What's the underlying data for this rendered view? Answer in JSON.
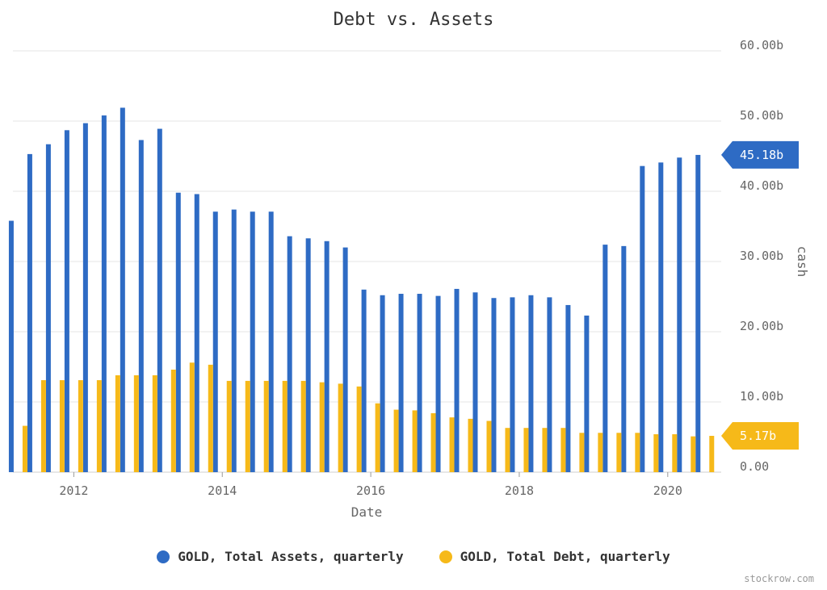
{
  "chart_data": {
    "type": "bar",
    "title": "Debt vs. Assets",
    "xlabel": "Date",
    "ylabel": "cash",
    "ylim": [
      0,
      60
    ],
    "y_ticks": [
      {
        "value": 0,
        "label": "0.00"
      },
      {
        "value": 10,
        "label": "10.00b"
      },
      {
        "value": 20,
        "label": "20.00b"
      },
      {
        "value": 30,
        "label": "30.00b"
      },
      {
        "value": 40,
        "label": "40.00b"
      },
      {
        "value": 50,
        "label": "50.00b"
      },
      {
        "value": 60,
        "label": "60.00b"
      }
    ],
    "x_range": [
      2011.18,
      2020.72
    ],
    "x_ticks": [
      {
        "value": 2012.0,
        "label": "2012"
      },
      {
        "value": 2014.0,
        "label": "2014"
      },
      {
        "value": 2016.0,
        "label": "2016"
      },
      {
        "value": 2018.0,
        "label": "2018"
      },
      {
        "value": 2020.0,
        "label": "2020"
      }
    ],
    "grid": true,
    "legend_position": "bottom",
    "y_axis_position": "right",
    "x": [
      2011.25,
      2011.5,
      2011.75,
      2012.0,
      2012.25,
      2012.5,
      2012.75,
      2013.0,
      2013.25,
      2013.5,
      2013.75,
      2014.0,
      2014.25,
      2014.5,
      2014.75,
      2015.0,
      2015.25,
      2015.5,
      2015.75,
      2016.0,
      2016.25,
      2016.5,
      2016.75,
      2017.0,
      2017.25,
      2017.5,
      2017.75,
      2018.0,
      2018.25,
      2018.5,
      2018.75,
      2019.0,
      2019.25,
      2019.5,
      2019.75,
      2020.0,
      2020.25,
      2020.5
    ],
    "series": [
      {
        "name": "GOLD, Total Assets, quarterly",
        "color": "#2e6bc4",
        "values": [
          35.8,
          45.3,
          46.7,
          48.7,
          49.7,
          50.8,
          51.9,
          47.3,
          48.9,
          39.8,
          39.6,
          37.1,
          37.4,
          37.1,
          37.1,
          33.6,
          33.3,
          32.9,
          32.0,
          26.0,
          25.2,
          25.4,
          25.4,
          25.1,
          26.1,
          25.6,
          24.8,
          24.9,
          25.2,
          24.9,
          23.8,
          22.3,
          32.4,
          32.2,
          43.6,
          44.1,
          44.8,
          45.18
        ]
      },
      {
        "name": "GOLD, Total Debt, quarterly",
        "color": "#f6b919",
        "values": [
          6.6,
          13.1,
          13.1,
          13.1,
          13.1,
          13.8,
          13.8,
          13.8,
          14.6,
          15.6,
          15.3,
          13.0,
          13.0,
          13.0,
          13.0,
          13.0,
          12.8,
          12.6,
          12.2,
          9.8,
          8.9,
          8.8,
          8.4,
          7.8,
          7.6,
          7.3,
          6.3,
          6.3,
          6.3,
          6.3,
          5.6,
          5.6,
          5.6,
          5.6,
          5.4,
          5.4,
          5.1,
          5.17
        ]
      }
    ],
    "last_value_badges": [
      {
        "label": "45.18b",
        "value": 45.18,
        "color": "#2e6bc4"
      },
      {
        "label": "5.17b",
        "value": 5.17,
        "color": "#f6b919"
      }
    ]
  },
  "watermark": "stockrow.com"
}
